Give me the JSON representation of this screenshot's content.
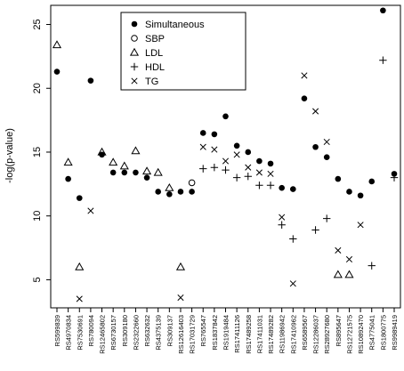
{
  "chart_data": {
    "type": "scatter",
    "title": "",
    "xlabel": "",
    "ylabel": "-log(p-value)",
    "ylim": [
      2.8,
      26.5
    ],
    "yticks": [
      5,
      10,
      15,
      20,
      25
    ],
    "legend_position": "top-left",
    "legend": [
      "Simultaneous",
      "SBP",
      "LDL",
      "HDL",
      "TG"
    ],
    "categories": [
      "RS599839",
      "RS4970834",
      "RS7530691",
      "RS780094",
      "RS12465802",
      "RS6730157",
      "RS309180",
      "RS2322660",
      "RS632632",
      "RS4375139",
      "RS309137",
      "RS12616403",
      "RS17031729",
      "RS765547",
      "RS1837842",
      "RS1919484",
      "RS17411126",
      "RS17489258",
      "RS17411031",
      "RS17489282",
      "RS11986942",
      "RS17410962",
      "RS6589567",
      "RS12286037",
      "RS28927680",
      "RS895647",
      "RS12721575",
      "RS10892470",
      "RS4775041",
      "RS1800775",
      "RS9989419"
    ],
    "series": [
      {
        "name": "Simultaneous",
        "marker": "filled-circle",
        "values": [
          21.3,
          12.9,
          11.4,
          20.6,
          14.8,
          13.4,
          13.4,
          13.4,
          13.0,
          11.9,
          11.7,
          11.9,
          11.9,
          16.5,
          16.4,
          17.8,
          15.5,
          15.0,
          14.3,
          14.1,
          12.2,
          12.1,
          19.2,
          15.4,
          14.6,
          12.9,
          11.9,
          11.6,
          12.7,
          26.1,
          13.3
        ]
      },
      {
        "name": "SBP",
        "marker": "open-circle",
        "values": [
          null,
          null,
          null,
          null,
          null,
          null,
          null,
          null,
          null,
          null,
          null,
          null,
          12.6,
          null,
          null,
          null,
          null,
          null,
          null,
          null,
          null,
          null,
          null,
          null,
          null,
          null,
          null,
          null,
          null,
          null,
          null
        ]
      },
      {
        "name": "LDL",
        "marker": "triangle",
        "values": [
          23.4,
          14.2,
          6.0,
          null,
          15.0,
          14.2,
          13.9,
          15.1,
          13.5,
          13.4,
          12.2,
          6.0,
          null,
          null,
          null,
          null,
          null,
          null,
          null,
          null,
          null,
          null,
          null,
          null,
          null,
          5.4,
          5.4,
          null,
          null,
          null,
          null
        ]
      },
      {
        "name": "HDL",
        "marker": "plus",
        "values": [
          null,
          null,
          null,
          null,
          null,
          null,
          null,
          null,
          null,
          null,
          null,
          null,
          null,
          13.7,
          13.8,
          13.6,
          13.0,
          13.1,
          12.4,
          12.4,
          9.3,
          8.2,
          null,
          8.9,
          9.8,
          null,
          null,
          null,
          6.1,
          22.2,
          13.0
        ]
      },
      {
        "name": "TG",
        "marker": "cross",
        "values": [
          null,
          null,
          3.5,
          10.4,
          null,
          null,
          null,
          null,
          null,
          null,
          null,
          3.6,
          null,
          15.4,
          15.2,
          14.3,
          14.8,
          13.8,
          13.4,
          13.3,
          9.9,
          4.7,
          21.0,
          18.2,
          15.8,
          7.3,
          6.6,
          9.3,
          null,
          null,
          null
        ]
      }
    ]
  }
}
